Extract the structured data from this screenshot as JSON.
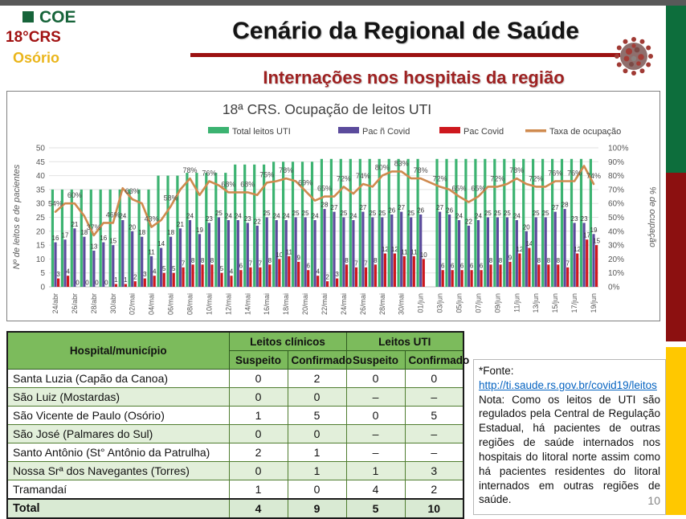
{
  "branding": {
    "coe": "COE",
    "crs": "18°CRS",
    "city": "Osório"
  },
  "header": {
    "title": "Cenário da Regional de Saúde",
    "subtitle": "Internações nos hospitais da região"
  },
  "chart_data": {
    "type": "bar",
    "title": "18ª CRS. Ocupação de leitos UTI",
    "ylabel_left": "Nº de leitos e de pacientes",
    "ylabel_right": "% de ocupação",
    "ylim_left": [
      0,
      50
    ],
    "ytick_step_left": 5,
    "ylim_right": [
      0,
      100
    ],
    "ytick_step_right": 10,
    "grid": true,
    "legend_position": "top",
    "x_tick_every": 2,
    "x_dates": [
      "24/abr",
      "25/abr",
      "26/abr",
      "27/abr",
      "28/abr",
      "29/abr",
      "30/abr",
      "01/mai",
      "02/mai",
      "03/mai",
      "04/mai",
      "05/mai",
      "06/mai",
      "07/mai",
      "08/mai",
      "09/mai",
      "10/mai",
      "11/mai",
      "12/mai",
      "13/mai",
      "14/mai",
      "15/mai",
      "16/mai",
      "17/mai",
      "18/mai",
      "19/mai",
      "20/mai",
      "21/mai",
      "22/mai",
      "23/mai",
      "24/mai",
      "25/mai",
      "26/mai",
      "27/mai",
      "28/mai",
      "29/mai",
      "30/mai",
      "31/mai",
      "01/jun",
      "02/jun",
      "03/jun",
      "04/jun",
      "05/jun",
      "06/jun",
      "07/jun",
      "08/jun",
      "09/jun",
      "10/jun",
      "11/jun",
      "12/jun",
      "13/jun",
      "14/jun",
      "15/jun",
      "16/jun",
      "17/jun",
      "18/jun",
      "19/jun"
    ],
    "series": [
      {
        "name": "Total leitos UTI",
        "type": "bar",
        "axis": "left",
        "color": "#3cb371",
        "values": [
          35,
          35,
          35,
          35,
          35,
          35,
          35,
          35,
          35,
          35,
          35,
          40,
          40,
          40,
          41,
          41,
          41,
          41,
          41,
          44,
          44,
          44,
          44,
          45,
          45,
          45,
          45,
          45,
          46,
          46,
          46,
          46,
          46,
          46,
          46,
          46,
          46,
          46,
          46,
          null,
          46,
          46,
          46,
          46,
          46,
          46,
          46,
          46,
          46,
          46,
          46,
          46,
          46,
          46,
          46,
          46,
          46
        ]
      },
      {
        "name": "Pac ñ Covid",
        "type": "bar",
        "axis": "left",
        "color": "#5b4b9c",
        "values": [
          16,
          17,
          21,
          18,
          13,
          16,
          15,
          24,
          20,
          18,
          11,
          14,
          18,
          21,
          24,
          19,
          23,
          25,
          24,
          24,
          23,
          22,
          25,
          24,
          24,
          25,
          25,
          24,
          28,
          27,
          25,
          24,
          27,
          25,
          25,
          26,
          27,
          25,
          26,
          null,
          27,
          26,
          24,
          22,
          24,
          25,
          25,
          25,
          24,
          20,
          25,
          25,
          27,
          28,
          23,
          23,
          19
        ]
      },
      {
        "name": "Pac Covid",
        "type": "bar",
        "axis": "left",
        "color": "#ce181e",
        "values": [
          3,
          4,
          0,
          0,
          0,
          0,
          1,
          1,
          2,
          3,
          4,
          5,
          5,
          7,
          8,
          8,
          8,
          5,
          4,
          6,
          7,
          7,
          8,
          10,
          11,
          9,
          6,
          4,
          2,
          3,
          8,
          7,
          7,
          8,
          12,
          12,
          11,
          11,
          10,
          null,
          6,
          6,
          6,
          6,
          6,
          8,
          8,
          9,
          12,
          14,
          8,
          8,
          8,
          7,
          12,
          17,
          15
        ]
      },
      {
        "name": "Taxa de ocupação",
        "type": "line",
        "axis": "right",
        "color": "#cf8a4e",
        "values": [
          54,
          60,
          60,
          51,
          37,
          46,
          46,
          71,
          63,
          60,
          43,
          48,
          58,
          70,
          78,
          66,
          76,
          73,
          68,
          68,
          68,
          66,
          75,
          76,
          78,
          76,
          69,
          62,
          65,
          65,
          72,
          67,
          74,
          72,
          80,
          83,
          83,
          78,
          78,
          null,
          72,
          70,
          65,
          61,
          65,
          72,
          72,
          74,
          78,
          74,
          72,
          72,
          76,
          76,
          76,
          87,
          74
        ]
      }
    ]
  },
  "table": {
    "col_header": "Hospital/município",
    "groups": [
      {
        "label": "Leitos clínicos"
      },
      {
        "label": "Leitos UTI"
      }
    ],
    "sub_headers": [
      "Suspeito",
      "Confirmado",
      "Suspeito",
      "Confirmado"
    ],
    "rows": [
      {
        "hospital": "Santa Luzia (Capão da Canoa)",
        "values": [
          "0",
          "2",
          "0",
          "0"
        ]
      },
      {
        "hospital": "São Luiz (Mostardas)",
        "values": [
          "0",
          "0",
          "–",
          "–"
        ]
      },
      {
        "hospital": "São Vicente de Paulo (Osório)",
        "values": [
          "1",
          "5",
          "0",
          "5"
        ]
      },
      {
        "hospital": "São José (Palmares do Sul)",
        "values": [
          "0",
          "0",
          "–",
          "–"
        ]
      },
      {
        "hospital": "Santo Antônio (St° Antônio da Patrulha)",
        "values": [
          "2",
          "1",
          "–",
          "–"
        ]
      },
      {
        "hospital": "Nossa Srª dos Navegantes (Torres)",
        "values": [
          "0",
          "1",
          "1",
          "3"
        ]
      },
      {
        "hospital": "Tramandaí",
        "values": [
          "1",
          "0",
          "4",
          "2"
        ]
      }
    ],
    "total": {
      "label": "Total",
      "values": [
        "4",
        "9",
        "5",
        "10"
      ]
    }
  },
  "note": {
    "fonte_label": "*Fonte:",
    "link_text": "http://ti.saude.rs.gov.br/covid19/leitos",
    "body": "Nota: Como os leitos de UTI são regulados pela Central de Regulação Estadual, há pacientes de outras regiões de saúde internados nos hospitais do litoral norte assim como há pacientes residentes do litoral internados em outras regiões de saúde.",
    "page_number": "10"
  }
}
